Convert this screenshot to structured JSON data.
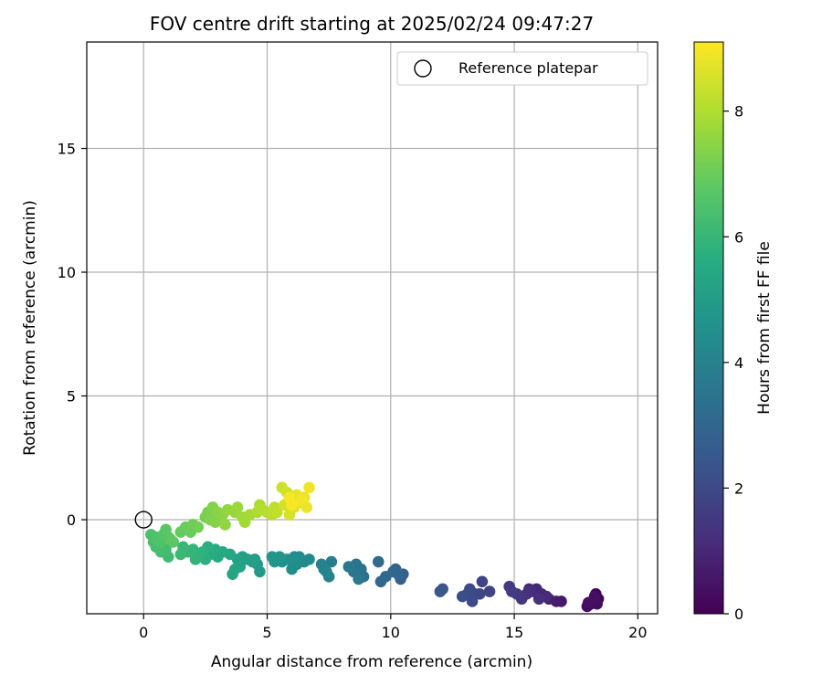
{
  "chart_data": {
    "type": "scatter",
    "title": "FOV centre drift starting at 2025/02/24 09:47:27",
    "xlabel": "Angular distance from reference (arcmin)",
    "ylabel": "Rotation from reference (arcmin)",
    "xlim": [
      -2.3,
      20.8
    ],
    "ylim": [
      -3.8,
      19.3
    ],
    "xticks": [
      0,
      5,
      10,
      15,
      20
    ],
    "yticks": [
      0,
      5,
      10,
      15
    ],
    "grid": true,
    "legend": {
      "placement": "top-right",
      "entries": [
        "Reference platepar"
      ]
    },
    "reference_point": {
      "x": 0,
      "y": 0,
      "marker": "open-circle",
      "label": "Reference platepar"
    },
    "colorbar": {
      "label": "Hours from first FF file",
      "colormap": "viridis",
      "range": [
        0,
        9.1
      ],
      "ticks": [
        0,
        2,
        4,
        6,
        8
      ]
    },
    "points": [
      {
        "x": 18.3,
        "y": -3.0,
        "h": 0.05
      },
      {
        "x": 18.4,
        "y": -3.2,
        "h": 0.1
      },
      {
        "x": 18.2,
        "y": -3.3,
        "h": 0.15
      },
      {
        "x": 18.1,
        "y": -3.4,
        "h": 0.2
      },
      {
        "x": 17.95,
        "y": -3.5,
        "h": 0.25
      },
      {
        "x": 18.35,
        "y": -3.4,
        "h": 0.3
      },
      {
        "x": 18.25,
        "y": -3.1,
        "h": 0.35
      },
      {
        "x": 18.0,
        "y": -3.35,
        "h": 0.4
      },
      {
        "x": 16.9,
        "y": -3.3,
        "h": 0.6
      },
      {
        "x": 16.7,
        "y": -3.3,
        "h": 0.7
      },
      {
        "x": 16.4,
        "y": -3.2,
        "h": 0.8
      },
      {
        "x": 16.1,
        "y": -3.0,
        "h": 0.9
      },
      {
        "x": 15.9,
        "y": -2.8,
        "h": 1.0
      },
      {
        "x": 16.3,
        "y": -3.1,
        "h": 1.05
      },
      {
        "x": 15.7,
        "y": -2.9,
        "h": 1.1
      },
      {
        "x": 15.6,
        "y": -2.8,
        "h": 1.15
      },
      {
        "x": 16.0,
        "y": -3.2,
        "h": 1.2
      },
      {
        "x": 15.5,
        "y": -3.0,
        "h": 1.25
      },
      {
        "x": 15.3,
        "y": -3.2,
        "h": 1.4
      },
      {
        "x": 15.1,
        "y": -3.0,
        "h": 1.5
      },
      {
        "x": 14.8,
        "y": -2.7,
        "h": 1.55
      },
      {
        "x": 14.9,
        "y": -2.9,
        "h": 1.6
      },
      {
        "x": 14.0,
        "y": -2.9,
        "h": 1.8
      },
      {
        "x": 13.7,
        "y": -2.5,
        "h": 1.85
      },
      {
        "x": 13.6,
        "y": -3.0,
        "h": 1.9
      },
      {
        "x": 13.4,
        "y": -3.0,
        "h": 1.95
      },
      {
        "x": 13.2,
        "y": -2.8,
        "h": 2.0
      },
      {
        "x": 13.3,
        "y": -3.3,
        "h": 2.05
      },
      {
        "x": 13.1,
        "y": -3.0,
        "h": 2.1
      },
      {
        "x": 12.9,
        "y": -3.1,
        "h": 2.15
      },
      {
        "x": 12.1,
        "y": -2.8,
        "h": 2.4
      },
      {
        "x": 12.0,
        "y": -2.9,
        "h": 2.45
      },
      {
        "x": 10.5,
        "y": -2.2,
        "h": 2.8
      },
      {
        "x": 10.4,
        "y": -2.4,
        "h": 2.85
      },
      {
        "x": 10.2,
        "y": -2.0,
        "h": 2.9
      },
      {
        "x": 10.3,
        "y": -2.2,
        "h": 2.95
      },
      {
        "x": 10.1,
        "y": -2.1,
        "h": 3.0
      },
      {
        "x": 9.8,
        "y": -2.3,
        "h": 3.05
      },
      {
        "x": 9.6,
        "y": -2.5,
        "h": 3.1
      },
      {
        "x": 9.5,
        "y": -1.7,
        "h": 3.15
      },
      {
        "x": 8.9,
        "y": -2.3,
        "h": 3.4
      },
      {
        "x": 8.8,
        "y": -2.0,
        "h": 3.45
      },
      {
        "x": 8.6,
        "y": -1.8,
        "h": 3.5
      },
      {
        "x": 8.5,
        "y": -2.1,
        "h": 3.55
      },
      {
        "x": 8.7,
        "y": -2.4,
        "h": 3.6
      },
      {
        "x": 8.3,
        "y": -1.9,
        "h": 3.65
      },
      {
        "x": 7.6,
        "y": -1.7,
        "h": 3.9
      },
      {
        "x": 7.5,
        "y": -2.3,
        "h": 3.95
      },
      {
        "x": 7.3,
        "y": -2.0,
        "h": 4.0
      },
      {
        "x": 7.2,
        "y": -1.8,
        "h": 4.05
      },
      {
        "x": 7.4,
        "y": -2.1,
        "h": 4.1
      },
      {
        "x": 6.7,
        "y": -1.6,
        "h": 4.25
      },
      {
        "x": 6.5,
        "y": -1.7,
        "h": 4.3
      },
      {
        "x": 6.3,
        "y": -1.5,
        "h": 4.35
      },
      {
        "x": 6.2,
        "y": -1.8,
        "h": 4.4
      },
      {
        "x": 6.0,
        "y": -2.0,
        "h": 4.45
      },
      {
        "x": 6.1,
        "y": -1.5,
        "h": 4.5
      },
      {
        "x": 5.8,
        "y": -1.6,
        "h": 4.55
      },
      {
        "x": 5.6,
        "y": -1.7,
        "h": 4.6
      },
      {
        "x": 5.5,
        "y": -1.5,
        "h": 4.65
      },
      {
        "x": 5.3,
        "y": -1.7,
        "h": 4.7
      },
      {
        "x": 5.2,
        "y": -1.5,
        "h": 4.75
      },
      {
        "x": 4.7,
        "y": -2.1,
        "h": 4.9
      },
      {
        "x": 4.6,
        "y": -1.8,
        "h": 4.95
      },
      {
        "x": 4.5,
        "y": -1.6,
        "h": 5.0
      },
      {
        "x": 4.4,
        "y": -1.7,
        "h": 5.05
      },
      {
        "x": 4.2,
        "y": -1.6,
        "h": 5.1
      },
      {
        "x": 4.0,
        "y": -1.5,
        "h": 5.15
      },
      {
        "x": 3.9,
        "y": -1.9,
        "h": 5.2
      },
      {
        "x": 3.8,
        "y": -1.6,
        "h": 5.25
      },
      {
        "x": 3.7,
        "y": -2.0,
        "h": 5.3
      },
      {
        "x": 3.6,
        "y": -2.2,
        "h": 5.35
      },
      {
        "x": 3.5,
        "y": -1.4,
        "h": 5.4
      },
      {
        "x": 3.2,
        "y": -1.3,
        "h": 5.5
      },
      {
        "x": 3.0,
        "y": -1.5,
        "h": 5.55
      },
      {
        "x": 2.9,
        "y": -1.2,
        "h": 5.6
      },
      {
        "x": 2.7,
        "y": -1.4,
        "h": 5.65
      },
      {
        "x": 2.6,
        "y": -1.1,
        "h": 5.7
      },
      {
        "x": 2.5,
        "y": -1.6,
        "h": 5.75
      },
      {
        "x": 2.4,
        "y": -1.3,
        "h": 5.8
      },
      {
        "x": 2.2,
        "y": -1.5,
        "h": 5.85
      },
      {
        "x": 2.1,
        "y": -1.6,
        "h": 5.9
      },
      {
        "x": 2.0,
        "y": -1.2,
        "h": 5.95
      },
      {
        "x": 1.8,
        "y": -1.3,
        "h": 6.0
      },
      {
        "x": 1.6,
        "y": -1.1,
        "h": 6.05
      },
      {
        "x": 1.5,
        "y": -1.4,
        "h": 6.1
      },
      {
        "x": 1.0,
        "y": -1.5,
        "h": 6.2
      },
      {
        "x": 0.9,
        "y": -1.2,
        "h": 6.25
      },
      {
        "x": 0.7,
        "y": -1.3,
        "h": 6.3
      },
      {
        "x": 0.5,
        "y": -1.1,
        "h": 6.35
      },
      {
        "x": 0.4,
        "y": -0.9,
        "h": 6.4
      },
      {
        "x": 0.3,
        "y": -0.6,
        "h": 6.45
      },
      {
        "x": 0.5,
        "y": -0.7,
        "h": 6.5
      },
      {
        "x": 0.7,
        "y": -0.9,
        "h": 6.55
      },
      {
        "x": 0.8,
        "y": -0.6,
        "h": 6.6
      },
      {
        "x": 1.0,
        "y": -0.7,
        "h": 6.65
      },
      {
        "x": 0.9,
        "y": -0.4,
        "h": 6.7
      },
      {
        "x": 1.2,
        "y": -0.9,
        "h": 6.75
      },
      {
        "x": 1.1,
        "y": -0.8,
        "h": 6.8
      },
      {
        "x": 1.5,
        "y": -0.5,
        "h": 6.9
      },
      {
        "x": 1.7,
        "y": -0.3,
        "h": 6.95
      },
      {
        "x": 1.9,
        "y": -0.5,
        "h": 7.0
      },
      {
        "x": 2.0,
        "y": -0.2,
        "h": 7.05
      },
      {
        "x": 2.2,
        "y": -0.3,
        "h": 7.1
      },
      {
        "x": 2.5,
        "y": 0.1,
        "h": 7.2
      },
      {
        "x": 2.6,
        "y": 0.3,
        "h": 7.25
      },
      {
        "x": 2.7,
        "y": 0.0,
        "h": 7.3
      },
      {
        "x": 2.8,
        "y": 0.5,
        "h": 7.35
      },
      {
        "x": 2.9,
        "y": -0.1,
        "h": 7.4
      },
      {
        "x": 3.0,
        "y": 0.3,
        "h": 7.45
      },
      {
        "x": 3.2,
        "y": 0.2,
        "h": 7.5
      },
      {
        "x": 3.3,
        "y": -0.2,
        "h": 7.55
      },
      {
        "x": 3.4,
        "y": 0.4,
        "h": 7.6
      },
      {
        "x": 3.7,
        "y": 0.3,
        "h": 7.65
      },
      {
        "x": 3.8,
        "y": 0.5,
        "h": 7.7
      },
      {
        "x": 4.0,
        "y": 0.1,
        "h": 7.75
      },
      {
        "x": 4.1,
        "y": -0.1,
        "h": 7.8
      },
      {
        "x": 4.3,
        "y": 0.2,
        "h": 7.85
      },
      {
        "x": 4.6,
        "y": 0.3,
        "h": 7.95
      },
      {
        "x": 4.7,
        "y": 0.6,
        "h": 8.0
      },
      {
        "x": 4.8,
        "y": 0.4,
        "h": 8.05
      },
      {
        "x": 5.0,
        "y": 0.3,
        "h": 8.1
      },
      {
        "x": 5.2,
        "y": 0.2,
        "h": 8.15
      },
      {
        "x": 5.3,
        "y": 0.5,
        "h": 8.2
      },
      {
        "x": 5.4,
        "y": 0.3,
        "h": 8.25
      },
      {
        "x": 5.6,
        "y": 1.3,
        "h": 8.4
      },
      {
        "x": 5.8,
        "y": 1.1,
        "h": 8.45
      },
      {
        "x": 5.7,
        "y": 0.6,
        "h": 8.5
      },
      {
        "x": 5.9,
        "y": 0.2,
        "h": 8.55
      },
      {
        "x": 6.0,
        "y": 0.8,
        "h": 8.6
      },
      {
        "x": 6.1,
        "y": 0.5,
        "h": 8.65
      },
      {
        "x": 6.3,
        "y": 0.7,
        "h": 8.7
      },
      {
        "x": 6.2,
        "y": 1.0,
        "h": 8.75
      },
      {
        "x": 6.5,
        "y": 0.9,
        "h": 8.8
      },
      {
        "x": 6.6,
        "y": 0.5,
        "h": 8.85
      },
      {
        "x": 6.7,
        "y": 1.3,
        "h": 8.9
      },
      {
        "x": 6.4,
        "y": 0.8,
        "h": 8.95
      },
      {
        "x": 5.9,
        "y": 0.9,
        "h": 9.0
      },
      {
        "x": 6.0,
        "y": 0.6,
        "h": 9.05
      }
    ]
  }
}
